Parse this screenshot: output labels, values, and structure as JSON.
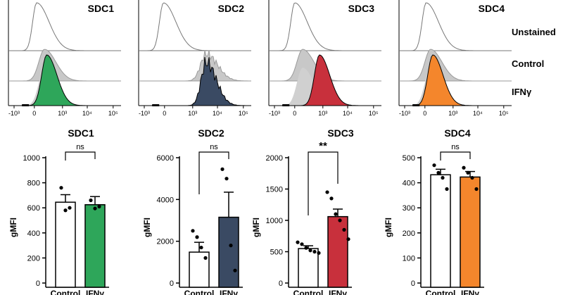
{
  "row_labels": [
    "Unstained",
    "Control",
    "IFNγ"
  ],
  "histograms": [
    {
      "title": "SDC1",
      "x_ticks": [
        "-10³",
        "0",
        "10³",
        "10⁴",
        "10⁵"
      ],
      "fill_color": "#2ea65a",
      "peaks": {
        "unstained": 0.25,
        "control": 0.32,
        "ifng": 0.34
      }
    },
    {
      "title": "SDC2",
      "x_ticks": [
        "-10³",
        "0",
        "10³",
        "10⁴",
        "10⁵"
      ],
      "fill_color": "#3a4a63",
      "peaks": {
        "unstained": 0.22,
        "control": 0.6,
        "ifng": 0.6
      }
    },
    {
      "title": "SDC3",
      "x_ticks": [
        "-10³",
        "0",
        "10³",
        "10⁴",
        "10⁵"
      ],
      "fill_color": "#c8303c",
      "peaks": {
        "unstained": 0.23,
        "control": 0.3,
        "ifng": 0.45
      }
    },
    {
      "title": "SDC4",
      "x_ticks": [
        "-10³",
        "0",
        "10³",
        "10⁴",
        "10⁵"
      ],
      "fill_color": "#f4862c",
      "peaks": {
        "unstained": 0.24,
        "control": 0.28,
        "ifng": 0.3
      }
    }
  ],
  "chart_data": [
    {
      "type": "bar",
      "title": "SDC1",
      "ylabel": "gMFI",
      "categories": [
        "Control",
        "IFNγ"
      ],
      "values": [
        645,
        625
      ],
      "errors": [
        60,
        65
      ],
      "colors": [
        "#ffffff",
        "#2ea65a"
      ],
      "points": [
        [
          760,
          580,
          600
        ],
        [
          660,
          595,
          610
        ]
      ],
      "ylim": [
        0,
        1000
      ],
      "yticks": [
        0,
        200,
        400,
        600,
        800,
        1000
      ],
      "significance": "ns"
    },
    {
      "type": "bar",
      "title": "SDC2",
      "ylabel": "gMFI",
      "categories": [
        "Control",
        "IFNγ"
      ],
      "values": [
        1480,
        3150
      ],
      "errors": [
        470,
        1200
      ],
      "colors": [
        "#ffffff",
        "#3a4a63"
      ],
      "points": [
        [
          2500,
          2200,
          1700,
          1200
        ],
        [
          5450,
          5000,
          1800,
          600
        ]
      ],
      "ylim": [
        0,
        6000
      ],
      "yticks": [
        0,
        2000,
        4000,
        6000
      ],
      "significance": "ns"
    },
    {
      "type": "bar",
      "title": "SDC3",
      "ylabel": "gMFI",
      "categories": [
        "Control",
        "IFNγ"
      ],
      "values": [
        550,
        1060
      ],
      "errors": [
        45,
        120
      ],
      "colors": [
        "#ffffff",
        "#c8303c"
      ],
      "points": [
        [
          650,
          620,
          560,
          520,
          500,
          480
        ],
        [
          1450,
          1350,
          1100,
          1000,
          850,
          700
        ]
      ],
      "ylim": [
        0,
        2000
      ],
      "yticks": [
        0,
        500,
        1000,
        1500,
        2000
      ],
      "significance": "**"
    },
    {
      "type": "bar",
      "title": "SDC4",
      "ylabel": "gMFI",
      "categories": [
        "Control",
        "IFNγ"
      ],
      "values": [
        432,
        423
      ],
      "errors": [
        22,
        22
      ],
      "colors": [
        "#ffffff",
        "#f4862c"
      ],
      "points": [
        [
          470,
          440,
          420,
          375
        ],
        [
          460,
          440,
          420,
          375
        ]
      ],
      "ylim": [
        0,
        500
      ],
      "yticks": [
        0,
        100,
        200,
        300,
        400,
        500
      ],
      "significance": "ns"
    }
  ]
}
